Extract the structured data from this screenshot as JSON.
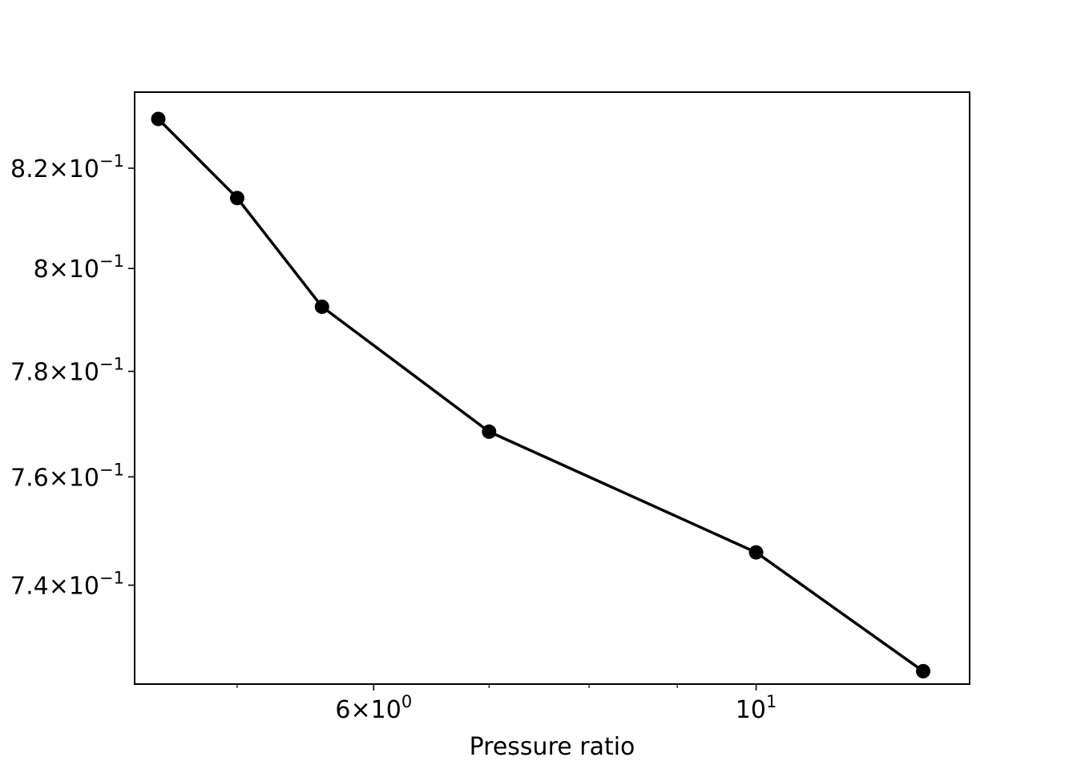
{
  "chart_data": {
    "type": "line",
    "title": "",
    "xlabel": "Pressure ratio",
    "ylabel": "",
    "xscale": "log",
    "yscale": "log",
    "xlim": [
      4.36,
      13.3
    ],
    "ylim": [
      0.7222,
      0.8355
    ],
    "grid": false,
    "legend": "none",
    "series": [
      {
        "color": "#000000",
        "marker": "circle",
        "x": [
          4.5,
          5.0,
          5.6,
          7.0,
          10.0,
          12.5
        ],
        "y": [
          0.83,
          0.814,
          0.7925,
          0.7685,
          0.746,
          0.7245
        ]
      }
    ],
    "x_major_ticks": [
      {
        "value": 6,
        "mantissa": "6",
        "base": "10",
        "exponent": "0"
      },
      {
        "value": 10,
        "mantissa": "",
        "base": "10",
        "exponent": "1"
      }
    ],
    "x_minor_ticks": [
      5,
      7,
      8,
      9
    ],
    "y_major_ticks": [
      {
        "value": 0.82,
        "mantissa": "8.2",
        "base": "10",
        "exponent": "−1"
      },
      {
        "value": 0.8,
        "mantissa": "8",
        "base": "10",
        "exponent": "−1"
      },
      {
        "value": 0.78,
        "mantissa": "7.8",
        "base": "10",
        "exponent": "−1"
      },
      {
        "value": 0.76,
        "mantissa": "7.6",
        "base": "10",
        "exponent": "−1"
      },
      {
        "value": 0.74,
        "mantissa": "7.4",
        "base": "10",
        "exponent": "−1"
      }
    ]
  }
}
